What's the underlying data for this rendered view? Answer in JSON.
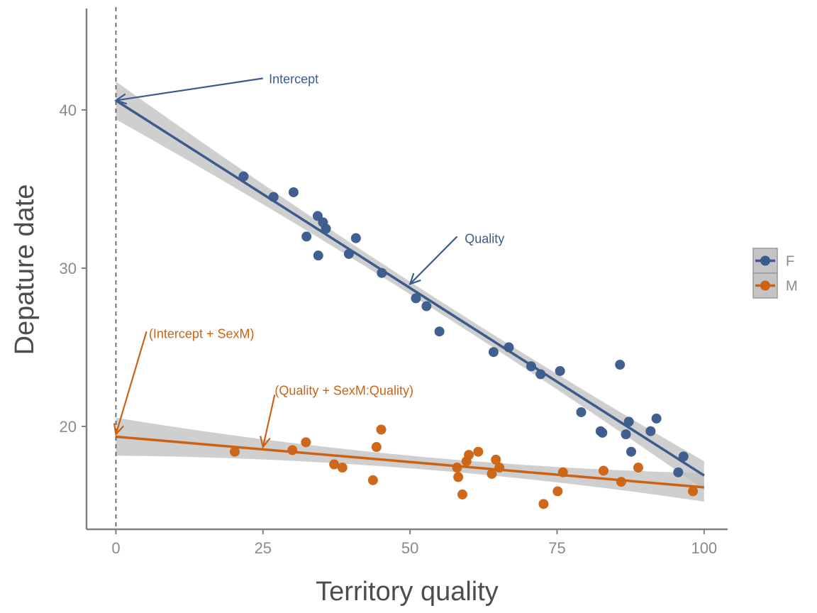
{
  "chart_data": {
    "type": "scatter",
    "xlabel": "Territory quality",
    "ylabel": "Depature date",
    "xlim": [
      -5,
      104
    ],
    "ylim": [
      13.5,
      46.5
    ],
    "x_ticks": [
      0,
      25,
      50,
      75,
      100
    ],
    "y_ticks": [
      20,
      30,
      40
    ],
    "reference_line_x": 0,
    "grid": false,
    "legend_position": "right",
    "colors": {
      "F": "#3a5b8c",
      "M": "#cc6314",
      "band": "#bfbfbf"
    },
    "series": [
      {
        "name": "F",
        "color": "#3a5b8c",
        "fit": {
          "intercept": 40.6,
          "slope": -0.237,
          "se_at_start": 1.2,
          "se_at_mid": 0.4,
          "se_at_end": 0.9
        },
        "points": [
          [
            21.7,
            35.8
          ],
          [
            26.8,
            34.5
          ],
          [
            30.2,
            34.8
          ],
          [
            32.4,
            32.0
          ],
          [
            34.3,
            33.3
          ],
          [
            35.2,
            32.9
          ],
          [
            35.7,
            32.5
          ],
          [
            34.4,
            30.8
          ],
          [
            39.6,
            30.9
          ],
          [
            40.8,
            31.9
          ],
          [
            45.2,
            29.7
          ],
          [
            51.0,
            28.1
          ],
          [
            52.8,
            27.6
          ],
          [
            55.0,
            26.0
          ],
          [
            64.2,
            24.7
          ],
          [
            66.8,
            25.0
          ],
          [
            70.6,
            23.8
          ],
          [
            72.2,
            23.3
          ],
          [
            75.5,
            23.5
          ],
          [
            79.1,
            20.9
          ],
          [
            82.4,
            19.7
          ],
          [
            82.7,
            19.6
          ],
          [
            85.7,
            23.9
          ],
          [
            86.7,
            19.5
          ],
          [
            87.2,
            20.3
          ],
          [
            87.6,
            18.4
          ],
          [
            90.9,
            19.7
          ],
          [
            91.9,
            20.5
          ],
          [
            95.6,
            17.1
          ],
          [
            96.5,
            18.1
          ]
        ]
      },
      {
        "name": "M",
        "color": "#cc6314",
        "fit": {
          "intercept": 19.35,
          "slope": -0.032,
          "se_at_start": 1.2,
          "se_at_mid": 0.4,
          "se_at_end": 0.9
        },
        "points": [
          [
            20.2,
            18.4
          ],
          [
            30.0,
            18.5
          ],
          [
            32.3,
            19.0
          ],
          [
            37.1,
            17.6
          ],
          [
            38.5,
            17.4
          ],
          [
            43.7,
            16.6
          ],
          [
            44.3,
            18.7
          ],
          [
            45.1,
            19.8
          ],
          [
            58.0,
            17.4
          ],
          [
            58.2,
            16.8
          ],
          [
            58.9,
            15.7
          ],
          [
            59.6,
            17.8
          ],
          [
            60.0,
            18.2
          ],
          [
            61.6,
            18.4
          ],
          [
            63.9,
            17.0
          ],
          [
            64.6,
            17.9
          ],
          [
            65.2,
            17.4
          ],
          [
            72.7,
            15.1
          ],
          [
            75.1,
            15.9
          ],
          [
            76.0,
            17.1
          ],
          [
            82.9,
            17.2
          ],
          [
            85.9,
            16.5
          ],
          [
            88.8,
            17.4
          ],
          [
            98.1,
            15.9
          ]
        ]
      }
    ],
    "annotations": [
      {
        "text": "Intercept",
        "color": "#3a5b8c",
        "text_at": [
          26.0,
          42.0
        ],
        "arrow_from": [
          25.0,
          42.0
        ],
        "arrow_to": [
          0.0,
          40.6
        ]
      },
      {
        "text": "Quality",
        "color": "#3a5b8c",
        "text_at": [
          59.3,
          31.9
        ],
        "arrow_from": [
          58.0,
          32.0
        ],
        "arrow_to": [
          50.0,
          29.0
        ]
      },
      {
        "text": "(Intercept + SexM)",
        "color": "#cc6314",
        "text_at": [
          5.6,
          25.9
        ],
        "arrow_from": [
          5.2,
          26.0
        ],
        "arrow_to": [
          0.0,
          19.5
        ]
      },
      {
        "text": "(Quality + SexM:Quality)",
        "color": "#cc6314",
        "text_at": [
          27.0,
          22.3
        ],
        "arrow_from": [
          27.0,
          22.0
        ],
        "arrow_to": [
          25.0,
          18.7
        ]
      }
    ]
  }
}
